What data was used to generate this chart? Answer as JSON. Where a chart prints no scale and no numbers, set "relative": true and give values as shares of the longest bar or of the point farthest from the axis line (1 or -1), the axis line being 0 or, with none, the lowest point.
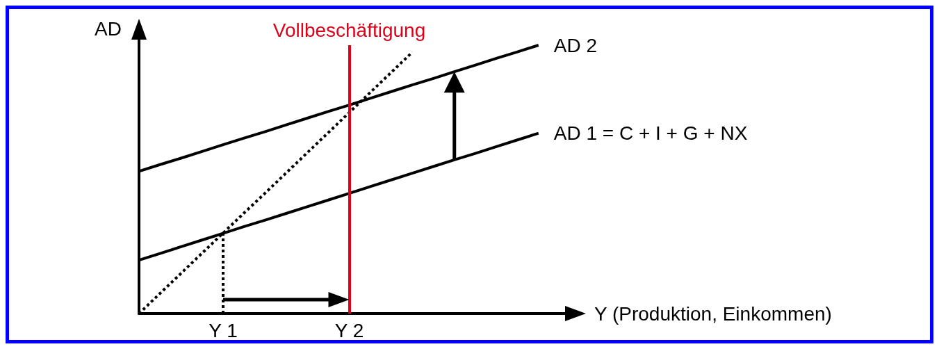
{
  "chart_data": {
    "type": "line",
    "relative": true,
    "xlabel": "Y (Produktion, Einkommen)",
    "ylabel": "AD",
    "categories": [
      null,
      null,
      null,
      null,
      "Y 1",
      null,
      null,
      null,
      null,
      null,
      "Y 2",
      null,
      null,
      null,
      null,
      null,
      null,
      null,
      null,
      null,
      null
    ],
    "series": [
      {
        "name": "AD 2",
        "color": "#000000",
        "values": [
          0.53,
          0.555,
          0.579,
          0.604,
          0.629,
          0.654,
          0.678,
          0.703,
          0.728,
          0.753,
          0.777,
          0.802,
          0.827,
          0.852,
          0.876,
          0.901,
          0.926,
          0.951,
          0.975,
          1,
          null
        ]
      },
      {
        "name": "AD 1 = C + I + G + NX",
        "color": "#000000",
        "values": [
          0.199,
          0.224,
          0.249,
          0.274,
          0.299,
          0.324,
          0.348,
          0.373,
          0.398,
          0.423,
          0.448,
          0.473,
          0.498,
          0.523,
          0.548,
          0.573,
          0.597,
          0.622,
          0.647,
          0.672,
          null
        ]
      },
      {
        "color": "#000000",
        "values": [
          0,
          0.075,
          0.15,
          0.225,
          0.3,
          0.375,
          0.449,
          0.524,
          0.599,
          0.674,
          0.749,
          0.824,
          0.899,
          0.974,
          null,
          null,
          null,
          null,
          null,
          null,
          null
        ],
        "line_style": "dotted"
      },
      {
        "color": "#000000",
        "x": [
          "Y 1",
          "Y 1"
        ],
        "values": [
          0,
          0.299
        ],
        "line_style": "dotted"
      }
    ],
    "ref_lines": [
      {
        "axis": "x",
        "value": "Y 2",
        "label": "Vollbeschäftigung",
        "color": "#e1001a"
      }
    ],
    "grid": false,
    "legend": false,
    "marker": "none",
    "line_style": "solid"
  }
}
